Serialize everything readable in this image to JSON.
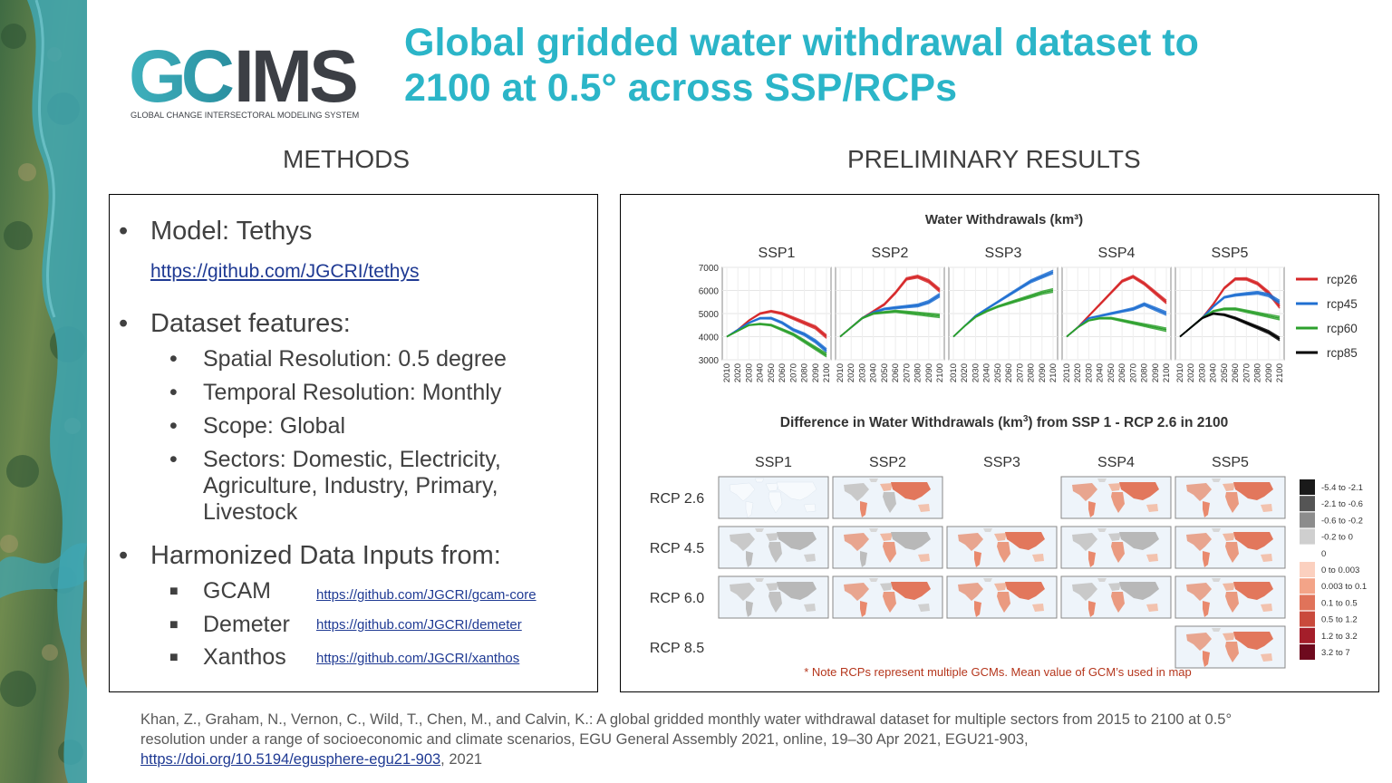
{
  "slide": {
    "title_line1": "Global gridded water withdrawal dataset to",
    "title_line2": "2100 at 0.5° across SSP/RCPs",
    "logo": {
      "letters": "GCIMS",
      "subtitle": "GLOBAL CHANGE INTERSECTORAL MODELING SYSTEM"
    },
    "methods_heading": "METHODS",
    "results_heading": "PRELIMINARY RESULTS"
  },
  "methods": {
    "model_label": "Model: Tethys",
    "model_link": "https://github.com/JGCRI/tethys",
    "features_label": "Dataset features:",
    "features": [
      "Spatial Resolution: 0.5 degree",
      "Temporal Resolution: Monthly",
      "Scope: Global"
    ],
    "sectors_line1": "Sectors: Domestic, Electricity,",
    "sectors_line2": "Agriculture, Industry, Primary,",
    "sectors_line3": "Livestock",
    "inputs_label": "Harmonized Data Inputs from:",
    "inputs": [
      {
        "name": "GCAM",
        "link": "https://github.com/JGCRI/gcam-core"
      },
      {
        "name": "Demeter",
        "link": "https://github.com/JGCRI/demeter"
      },
      {
        "name": "Xanthos",
        "link": "https://github.com/JGCRI/xanthos"
      }
    ]
  },
  "chart_data": [
    {
      "type": "line",
      "title": "Water Withdrawals (km³)",
      "panels": [
        "SSP1",
        "SSP2",
        "SSP3",
        "SSP4",
        "SSP5"
      ],
      "x": [
        2010,
        2020,
        2030,
        2040,
        2050,
        2060,
        2070,
        2080,
        2090,
        2100
      ],
      "ylim": [
        3000,
        7000
      ],
      "yticks": [
        3000,
        4000,
        5000,
        6000,
        7000
      ],
      "legend_position": "right",
      "series_colors": {
        "rcp26": "#d62728",
        "rcp45": "#1f6fd1",
        "rcp60": "#2ca02c",
        "rcp85": "#000000"
      },
      "series": [
        {
          "panel": "SSP1",
          "name": "rcp26",
          "values": [
            4000,
            4300,
            4700,
            5000,
            5100,
            5000,
            4800,
            4600,
            4400,
            4000
          ]
        },
        {
          "panel": "SSP1",
          "name": "rcp45",
          "values": [
            4000,
            4300,
            4600,
            4800,
            4800,
            4600,
            4300,
            4100,
            3800,
            3400
          ]
        },
        {
          "panel": "SSP1",
          "name": "rcp60",
          "values": [
            4000,
            4250,
            4500,
            4550,
            4500,
            4300,
            4100,
            3800,
            3500,
            3200
          ]
        },
        {
          "panel": "SSP2",
          "name": "rcp26",
          "values": [
            4000,
            4400,
            4800,
            5100,
            5400,
            5900,
            6500,
            6600,
            6400,
            6000
          ]
        },
        {
          "panel": "SSP2",
          "name": "rcp45",
          "values": [
            4000,
            4400,
            4800,
            5050,
            5200,
            5250,
            5300,
            5350,
            5500,
            5800
          ]
        },
        {
          "panel": "SSP2",
          "name": "rcp60",
          "values": [
            4000,
            4400,
            4800,
            5000,
            5050,
            5100,
            5050,
            5000,
            4950,
            4900
          ]
        },
        {
          "panel": "SSP3",
          "name": "rcp45",
          "values": [
            4000,
            4450,
            4900,
            5200,
            5500,
            5800,
            6100,
            6400,
            6600,
            6800
          ]
        },
        {
          "panel": "SSP3",
          "name": "rcp60",
          "values": [
            4000,
            4450,
            4850,
            5100,
            5300,
            5450,
            5600,
            5750,
            5900,
            6000
          ]
        },
        {
          "panel": "SSP4",
          "name": "rcp26",
          "values": [
            4000,
            4400,
            4900,
            5400,
            5900,
            6400,
            6600,
            6300,
            5900,
            5500
          ]
        },
        {
          "panel": "SSP4",
          "name": "rcp45",
          "values": [
            4000,
            4400,
            4800,
            4900,
            5000,
            5100,
            5200,
            5400,
            5200,
            5000
          ]
        },
        {
          "panel": "SSP4",
          "name": "rcp60",
          "values": [
            4000,
            4400,
            4700,
            4800,
            4800,
            4700,
            4600,
            4500,
            4400,
            4300
          ]
        },
        {
          "panel": "SSP5",
          "name": "rcp26",
          "values": [
            4000,
            4400,
            4800,
            5400,
            6100,
            6500,
            6500,
            6300,
            5900,
            5300
          ]
        },
        {
          "panel": "SSP5",
          "name": "rcp45",
          "values": [
            4000,
            4400,
            4800,
            5300,
            5700,
            5800,
            5850,
            5900,
            5800,
            5500
          ]
        },
        {
          "panel": "SSP5",
          "name": "rcp60",
          "values": [
            4000,
            4400,
            4800,
            5100,
            5200,
            5200,
            5100,
            5000,
            4900,
            4800
          ]
        },
        {
          "panel": "SSP5",
          "name": "rcp85",
          "values": [
            4000,
            4400,
            4800,
            5000,
            4950,
            4800,
            4600,
            4400,
            4200,
            3900
          ]
        }
      ]
    },
    {
      "type": "heatmap",
      "title_part1": "Difference in Water Withdrawals (km",
      "title_sup": "3",
      "title_part2": ") from SSP 1 - RCP 2.6 in 2100",
      "columns": [
        "SSP1",
        "SSP2",
        "SSP3",
        "SSP4",
        "SSP5"
      ],
      "rows": [
        "RCP 2.6",
        "RCP 4.5",
        "RCP 6.0",
        "RCP 8.5"
      ],
      "cells_present": [
        [
          true,
          true,
          false,
          true,
          true
        ],
        [
          true,
          true,
          true,
          true,
          true
        ],
        [
          true,
          true,
          true,
          true,
          true
        ],
        [
          false,
          false,
          false,
          false,
          true
        ]
      ],
      "legend_position": "right",
      "legend": [
        {
          "label": "-5.4 to -2.1",
          "color": "#1a1a1a"
        },
        {
          "label": "-2.1 to -0.6",
          "color": "#555555"
        },
        {
          "label": "-0.6 to -0.2",
          "color": "#8c8c8c"
        },
        {
          "label": "-0.2 to 0",
          "color": "#cfcfcf"
        },
        {
          "label": "0",
          "color": "#ffffff"
        },
        {
          "label": "0 to 0.003",
          "color": "#fbd0bf"
        },
        {
          "label": "0.003 to 0.1",
          "color": "#f3a488"
        },
        {
          "label": "0.1 to 0.5",
          "color": "#e0735a"
        },
        {
          "label": "0.5 to 1.2",
          "color": "#c94a3c"
        },
        {
          "label": "1.2 to 3.2",
          "color": "#a41e2a"
        },
        {
          "label": "3.2 to 7",
          "color": "#6e0a1e"
        }
      ],
      "note": "* Note RCPs represent multiple GCMs. Mean value of GCM’s used in map"
    }
  ],
  "citation": {
    "line1": "Khan, Z., Graham, N., Vernon, C., Wild, T., Chen, M., and Calvin, K.: A global gridded monthly water withdrawal dataset for multiple sectors from 2015 to 2100 at 0.5°",
    "line2": "resolution under a range of socioeconomic and climate scenarios, EGU General Assembly 2021, online, 19–30 Apr 2021, EGU21-903,",
    "link": "https://doi.org/10.5194/egusphere-egu21-903",
    "tail": ", 2021"
  }
}
